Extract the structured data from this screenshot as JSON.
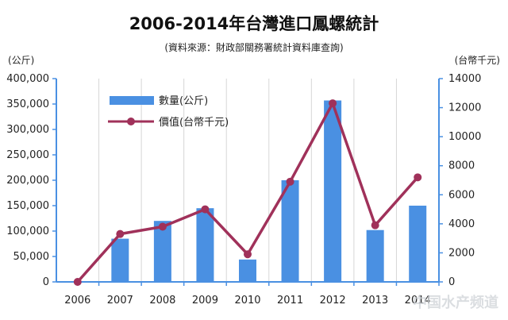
{
  "watermark": "中国水产频道",
  "chart_data": {
    "type": "bar+line",
    "title": "2006-2014年台灣進口鳳螺統計",
    "subtitle": "(資料來源：財政部關務署統計資料庫查詢)",
    "ylabel_left": "(公斤)",
    "ylabel_right": "(台幣千元)",
    "categories": [
      "2006",
      "2007",
      "2008",
      "2009",
      "2010",
      "2011",
      "2012",
      "2013",
      "2014"
    ],
    "ylim_left": [
      0,
      400000
    ],
    "ylim_right": [
      0,
      14000
    ],
    "yticks_left": [
      "0",
      "50,000",
      "100,000",
      "150,000",
      "200,000",
      "250,000",
      "300,000",
      "350,000",
      "400,000"
    ],
    "yticks_right": [
      "0",
      "2000",
      "4000",
      "6000",
      "8000",
      "10000",
      "12000",
      "14000"
    ],
    "grid": "vertical",
    "legend_position": "top-left",
    "series": [
      {
        "name": "數量(公斤)",
        "type": "bar",
        "axis": "left",
        "color": "#4a90e2",
        "values": [
          0,
          85000,
          120000,
          145000,
          44000,
          200000,
          357000,
          102000,
          150000
        ]
      },
      {
        "name": "價值(台幣千元)",
        "type": "line",
        "axis": "right",
        "color": "#a0315a",
        "values": [
          0,
          3300,
          3800,
          5000,
          1900,
          6900,
          12300,
          3900,
          7200
        ]
      }
    ]
  }
}
